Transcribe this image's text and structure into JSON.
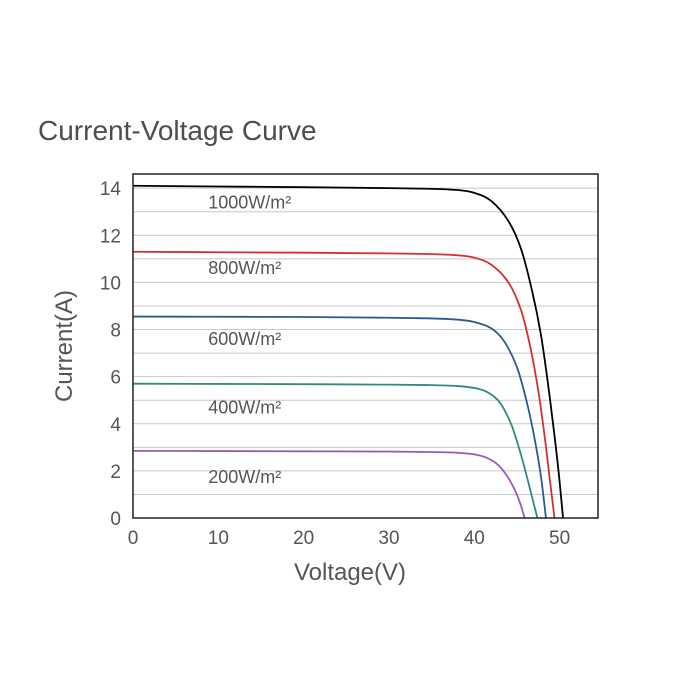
{
  "chart_data": {
    "type": "line",
    "title": "Current-Voltage Curve",
    "xlabel": "Voltage(V)",
    "ylabel": "Current(A)",
    "xlim": [
      0,
      54.5
    ],
    "ylim": [
      0,
      14.6
    ],
    "x_ticks": [
      0,
      10,
      20,
      30,
      40,
      50
    ],
    "y_ticks": [
      0,
      2,
      4,
      6,
      8,
      10,
      12,
      14
    ],
    "grid": "horizontal",
    "legend": "inline",
    "series": [
      {
        "name": "1000W/m²",
        "color": "#000000",
        "label_at": [
          6,
          13.4
        ],
        "points": [
          [
            0,
            14.1
          ],
          [
            10,
            14.07
          ],
          [
            20,
            14.04
          ],
          [
            30,
            14.0
          ],
          [
            35,
            13.97
          ],
          [
            38,
            13.92
          ],
          [
            40,
            13.8
          ],
          [
            42,
            13.45
          ],
          [
            44,
            12.6
          ],
          [
            45.5,
            11.4
          ],
          [
            46.8,
            9.6
          ],
          [
            47.8,
            7.8
          ],
          [
            48.6,
            5.8
          ],
          [
            49.3,
            3.8
          ],
          [
            49.9,
            1.9
          ],
          [
            50.4,
            0.0
          ]
        ]
      },
      {
        "name": "800W/m²",
        "color": "#d62f2f",
        "label_at": [
          6,
          10.6
        ],
        "points": [
          [
            0,
            11.3
          ],
          [
            10,
            11.28
          ],
          [
            20,
            11.26
          ],
          [
            30,
            11.23
          ],
          [
            35,
            11.2
          ],
          [
            38,
            11.15
          ],
          [
            40,
            11.05
          ],
          [
            42,
            10.75
          ],
          [
            44,
            10.0
          ],
          [
            45.5,
            8.8
          ],
          [
            46.6,
            7.2
          ],
          [
            47.5,
            5.4
          ],
          [
            48.2,
            3.6
          ],
          [
            48.8,
            1.8
          ],
          [
            49.4,
            0.0
          ]
        ]
      },
      {
        "name": "600W/m²",
        "color": "#2c5898",
        "label_at": [
          6,
          7.6
        ],
        "points": [
          [
            0,
            8.55
          ],
          [
            10,
            8.54
          ],
          [
            20,
            8.53
          ],
          [
            30,
            8.5
          ],
          [
            35,
            8.47
          ],
          [
            38,
            8.42
          ],
          [
            40,
            8.32
          ],
          [
            42,
            8.05
          ],
          [
            43.5,
            7.5
          ],
          [
            45,
            6.4
          ],
          [
            46.1,
            5.0
          ],
          [
            47.0,
            3.5
          ],
          [
            47.8,
            1.8
          ],
          [
            48.4,
            0.0
          ]
        ]
      },
      {
        "name": "400W/m²",
        "color": "#2e8b80",
        "label_at": [
          6,
          4.7
        ],
        "points": [
          [
            0,
            5.7
          ],
          [
            10,
            5.69
          ],
          [
            20,
            5.68
          ],
          [
            30,
            5.66
          ],
          [
            35,
            5.64
          ],
          [
            38,
            5.6
          ],
          [
            40,
            5.52
          ],
          [
            41.5,
            5.35
          ],
          [
            43,
            4.9
          ],
          [
            44.3,
            4.0
          ],
          [
            45.3,
            2.9
          ],
          [
            46.2,
            1.7
          ],
          [
            46.9,
            0.7
          ],
          [
            47.4,
            0.0
          ]
        ]
      },
      {
        "name": "200W/m²",
        "color": "#9b59b6",
        "label_at": [
          6,
          1.75
        ],
        "points": [
          [
            0,
            2.85
          ],
          [
            10,
            2.84
          ],
          [
            20,
            2.83
          ],
          [
            30,
            2.82
          ],
          [
            35,
            2.8
          ],
          [
            38,
            2.77
          ],
          [
            40,
            2.7
          ],
          [
            41.5,
            2.55
          ],
          [
            42.8,
            2.25
          ],
          [
            43.9,
            1.75
          ],
          [
            44.8,
            1.15
          ],
          [
            45.4,
            0.6
          ],
          [
            45.9,
            0.0
          ]
        ]
      }
    ]
  }
}
